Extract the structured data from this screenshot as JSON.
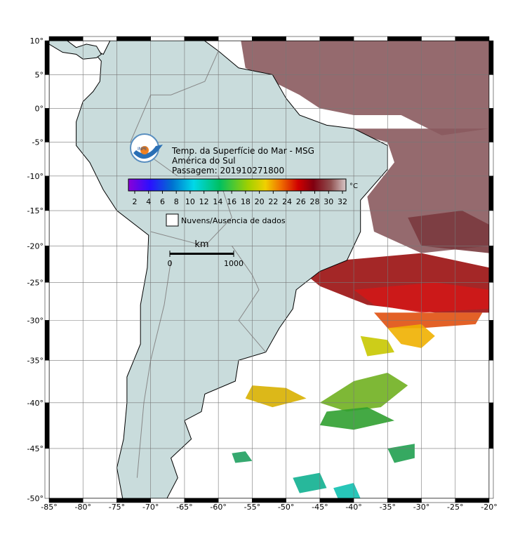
{
  "map": {
    "title_lines": [
      "Temp. da Superfície do Mar - MSG",
      "América do Sul",
      "Passagem: 201910271800"
    ],
    "logo_text": "INPE",
    "colorbar": {
      "unit": "°C",
      "ticks": [
        2,
        4,
        6,
        8,
        10,
        12,
        14,
        16,
        18,
        20,
        22,
        24,
        26,
        28,
        30,
        32
      ]
    },
    "legend": "Nuvens/Ausencia de dados",
    "scale_bar": {
      "unit": "km",
      "ticks": [
        0,
        1000
      ]
    },
    "lon_ticks": [
      {
        "value": -85,
        "label": "-85°"
      },
      {
        "value": -80,
        "label": "-80°"
      },
      {
        "value": -75,
        "label": "-75°"
      },
      {
        "value": -70,
        "label": "-70°"
      },
      {
        "value": -65,
        "label": "-65°"
      },
      {
        "value": -60,
        "label": "-60°"
      },
      {
        "value": -55,
        "label": "-55°"
      },
      {
        "value": -50,
        "label": "-50°"
      },
      {
        "value": -45,
        "label": "-45°"
      },
      {
        "value": -40,
        "label": "-40°"
      },
      {
        "value": -35,
        "label": "-35°"
      },
      {
        "value": -30,
        "label": "-30°"
      },
      {
        "value": -25,
        "label": "-25°"
      },
      {
        "value": -20,
        "label": "-20°"
      }
    ],
    "lat_ticks": [
      {
        "value": 10,
        "label": "10°"
      },
      {
        "value": 5,
        "label": "5°"
      },
      {
        "value": 0,
        "label": "0°"
      },
      {
        "value": -5,
        "label": "-5°"
      },
      {
        "value": -10,
        "label": "-10°"
      },
      {
        "value": -15,
        "label": "-15°"
      },
      {
        "value": -20,
        "label": "-20°"
      },
      {
        "value": -25,
        "label": "-25°"
      },
      {
        "value": -30,
        "label": "-30°"
      },
      {
        "value": -35,
        "label": "-35°"
      },
      {
        "value": -40,
        "label": "-40°"
      },
      {
        "value": -45,
        "label": "-45°"
      },
      {
        "value": -50,
        "label": "-50°"
      }
    ]
  }
}
